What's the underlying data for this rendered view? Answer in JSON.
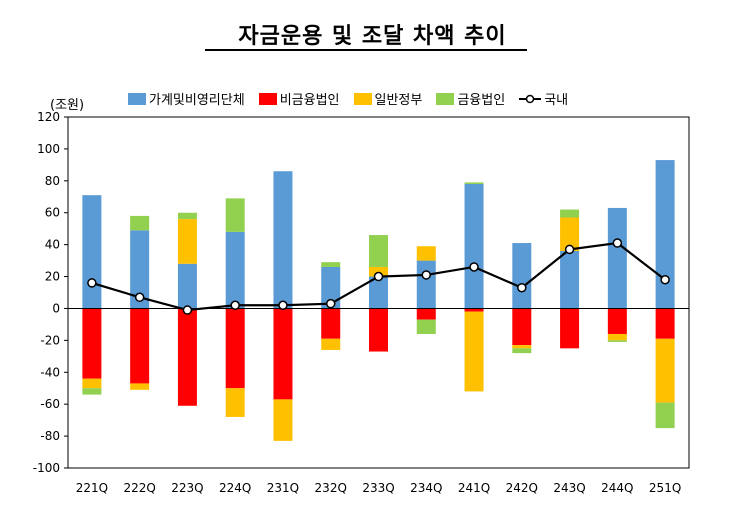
{
  "chart_data": {
    "type": "bar",
    "title": "자금운용 및 조달 차액 추이",
    "unit_label": "(조원)",
    "categories": [
      "221Q",
      "222Q",
      "223Q",
      "224Q",
      "231Q",
      "232Q",
      "233Q",
      "234Q",
      "241Q",
      "242Q",
      "243Q",
      "244Q",
      "251Q"
    ],
    "ylim": [
      -100,
      120
    ],
    "yticks": [
      -100,
      -80,
      -60,
      -40,
      -20,
      0,
      20,
      40,
      60,
      80,
      100,
      120
    ],
    "legend_position": "top",
    "stacked": true,
    "series": [
      {
        "name": "가계및비영리단체",
        "kind": "bar",
        "color": "#5B9BD5",
        "values": [
          71,
          49,
          28,
          48,
          86,
          26,
          20,
          30,
          78,
          41,
          36,
          63,
          93
        ]
      },
      {
        "name": "비금융법인",
        "kind": "bar",
        "color": "#FF0000",
        "values": [
          -44,
          -47,
          -61,
          -50,
          -57,
          -19,
          -27,
          -7,
          -2,
          -23,
          -25,
          -16,
          -19
        ]
      },
      {
        "name": "일반정부",
        "kind": "bar",
        "color": "#FFC000",
        "values": [
          -6,
          -4,
          28,
          -18,
          -26,
          -7,
          6,
          9,
          -50,
          -2,
          21,
          -4,
          -40
        ]
      },
      {
        "name": "금융법인",
        "kind": "bar",
        "color": "#92D050",
        "values": [
          -4,
          9,
          4,
          21,
          0,
          3,
          20,
          -9,
          1,
          -3,
          5,
          -1,
          -16
        ]
      },
      {
        "name": "국내",
        "kind": "line",
        "color": "#000000",
        "values": [
          16,
          7,
          -1,
          2,
          2,
          3,
          20,
          21,
          26,
          13,
          37,
          41,
          18
        ]
      }
    ]
  }
}
